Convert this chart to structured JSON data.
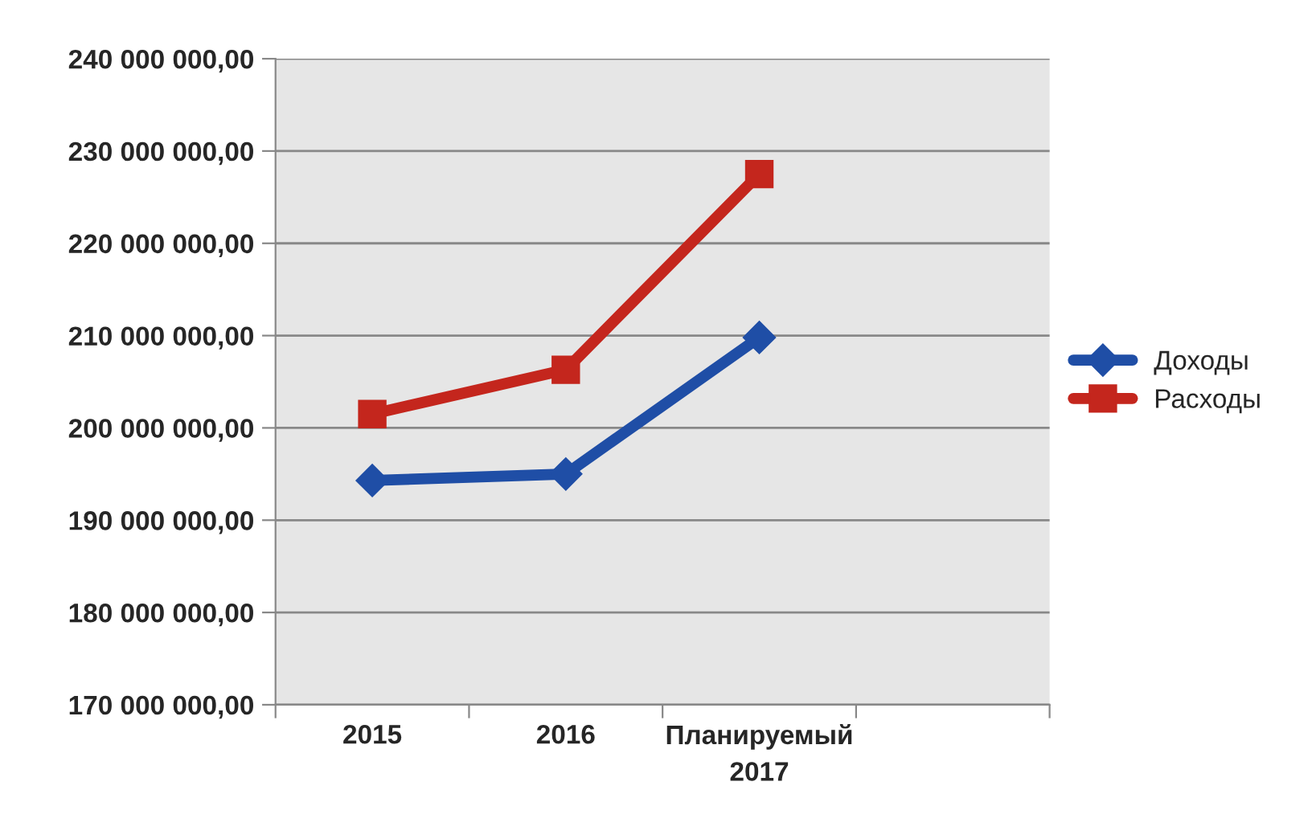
{
  "chart_data": {
    "type": "line",
    "categories": [
      "2015",
      "2016",
      "Планируемый\n2017",
      null
    ],
    "series": [
      {
        "name": "Доходы",
        "color": "#1f4ea6",
        "marker": "diamond",
        "values": [
          194300000,
          195000000,
          209800000,
          null
        ]
      },
      {
        "name": "Расходы",
        "color": "#c4261d",
        "marker": "square",
        "values": [
          201500000,
          206300000,
          227500000,
          null
        ]
      }
    ],
    "ylim": [
      170000000,
      240000000
    ],
    "yticks": [
      {
        "value": 170000000,
        "label": "170 000 000,00"
      },
      {
        "value": 180000000,
        "label": "180 000 000,00"
      },
      {
        "value": 190000000,
        "label": "190 000 000,00"
      },
      {
        "value": 200000000,
        "label": "200 000 000,00"
      },
      {
        "value": 210000000,
        "label": "210 000 000,00"
      },
      {
        "value": 220000000,
        "label": "220 000 000,00"
      },
      {
        "value": 230000000,
        "label": "230 000 000,00"
      },
      {
        "value": 240000000,
        "label": "240 000 000,00"
      }
    ],
    "grid": "y",
    "legend": "right"
  }
}
